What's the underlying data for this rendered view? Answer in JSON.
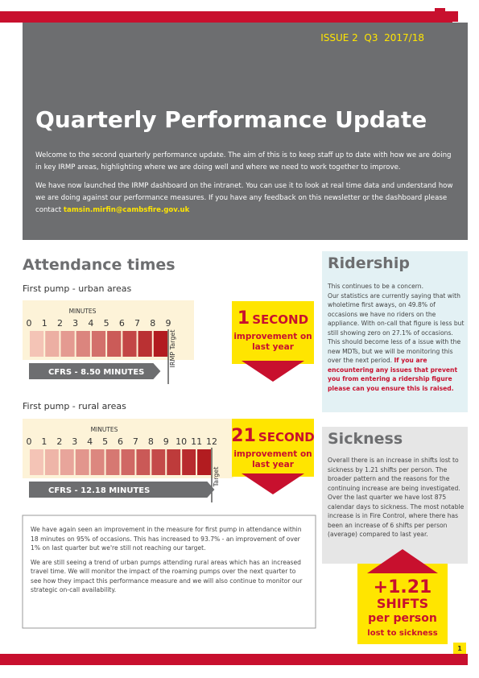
{
  "header": {
    "issue": "ISSUE 2  Q3  2017/18",
    "title": "Quarterly Performance Update",
    "intro": [
      "Welcome to the second quarterly performance update.  The aim of this is to keep staff up to date with how we are doing in key IRMP areas, highlighting where we are doing well and where we need to work together to improve.",
      "We have now launched the IRMP dashboard on the intranet. You can use it to look at real time data and understand how we are doing against our performance measures.  If you have any feedback on this newsletter or the dashboard please contact "
    ],
    "contact": "tamsin.mirfin@cambsfire.gov.uk"
  },
  "attendance": {
    "title": "Attendance times",
    "urban": {
      "label": "First pump - urban areas",
      "axis_label": "MINUTES",
      "ticks": [
        0,
        1,
        2,
        3,
        4,
        5,
        6,
        7,
        8,
        9
      ],
      "value": 8.5,
      "bar_label": "CFRS - 8.50 MINUTES",
      "target_label": "IRMP Target",
      "callout_number": "1",
      "callout_unit": "SECOND",
      "callout_text": "improvement on last year"
    },
    "rural": {
      "label": "First pump - rural areas",
      "axis_label": "MINUTES",
      "ticks": [
        0,
        1,
        2,
        3,
        4,
        5,
        6,
        7,
        8,
        9,
        10,
        11,
        12
      ],
      "value": 12.18,
      "bar_label": "CFRS - 12.18 MINUTES",
      "target_label": "Target",
      "callout_number": "21",
      "callout_unit": "SECOND",
      "callout_text": "improvement on last year"
    },
    "summary": [
      "We have again seen an improvement in the measure for first pump in attendance within 18 minutes on 95% of occasions. This has increased to 93.7% - an improvement of over 1% on last quarter but we're still not reaching our target.",
      "We are still seeing a trend of urban pumps attending rural areas which has an increased travel time. We will monitor the impact of the roaming pumps over the next quarter to see how they impact this performance measure and we will also continue to monitor our strategic on-call availability."
    ]
  },
  "ridership": {
    "title": "Ridership",
    "lead": "This continues to be a concern.",
    "body": "Our statistics are currently saying that with wholetime first aways, on 49.8% of occasions we have no riders on the appliance. With on-call that figure is less but still showing zero on 27.1% of occasions. This should become less of a issue with the new MDTs, but we will be monitoring this over the next period. ",
    "highlight": "If you are encountering any issues that prevent you from entering a ridership figure please can you ensure this is raised."
  },
  "sickness": {
    "title": "Sickness",
    "body": "Overall there is an increase in shifts lost to sickness by 1.21 shifts per person. The broader pattern and the reasons for the continuing increase are being investigated. Over the last quarter we have lost 875 calendar days to sickness. The most notable increase is in Fire Control, where there has been an increase of 6 shifts per person (average) compared to last year.",
    "callout": [
      "+1.21",
      "SHIFTS",
      "per person",
      "lost to sickness"
    ]
  },
  "page_number": "1"
}
